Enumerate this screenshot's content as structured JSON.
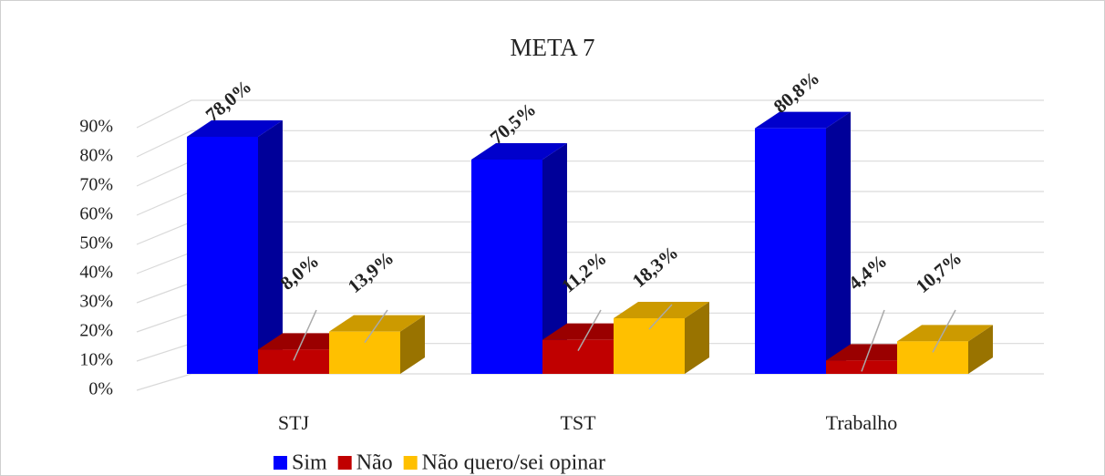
{
  "chart_data": {
    "type": "bar3d",
    "title": "META 7",
    "categories": [
      "STJ",
      "TST",
      "Trabalho"
    ],
    "series": [
      {
        "name": "Sim",
        "color": "#0000ff",
        "values": [
          78.0,
          70.5,
          80.8
        ],
        "value_labels": [
          "78,0%",
          "70,5%",
          "80,8%"
        ]
      },
      {
        "name": "Não",
        "color": "#c00000",
        "values": [
          8.0,
          11.2,
          4.4
        ],
        "value_labels": [
          "8,0%",
          "11,2%",
          "4,4%"
        ]
      },
      {
        "name": "Não quero/sei opinar",
        "color": "#ffc000",
        "values": [
          13.9,
          18.3,
          10.7
        ],
        "value_labels": [
          "13,9%",
          "18,3%",
          "10,7%"
        ]
      }
    ],
    "ylim": [
      0,
      90
    ],
    "yticks": [
      {
        "value": 0,
        "label": "0%"
      },
      {
        "value": 10,
        "label": "10%"
      },
      {
        "value": 20,
        "label": "20%"
      },
      {
        "value": 30,
        "label": "30%"
      },
      {
        "value": 40,
        "label": "40%"
      },
      {
        "value": 50,
        "label": "50%"
      },
      {
        "value": 60,
        "label": "60%"
      },
      {
        "value": 70,
        "label": "70%"
      },
      {
        "value": 80,
        "label": "80%"
      },
      {
        "value": 90,
        "label": "90%"
      }
    ],
    "grid": true,
    "legend": "bottom"
  }
}
